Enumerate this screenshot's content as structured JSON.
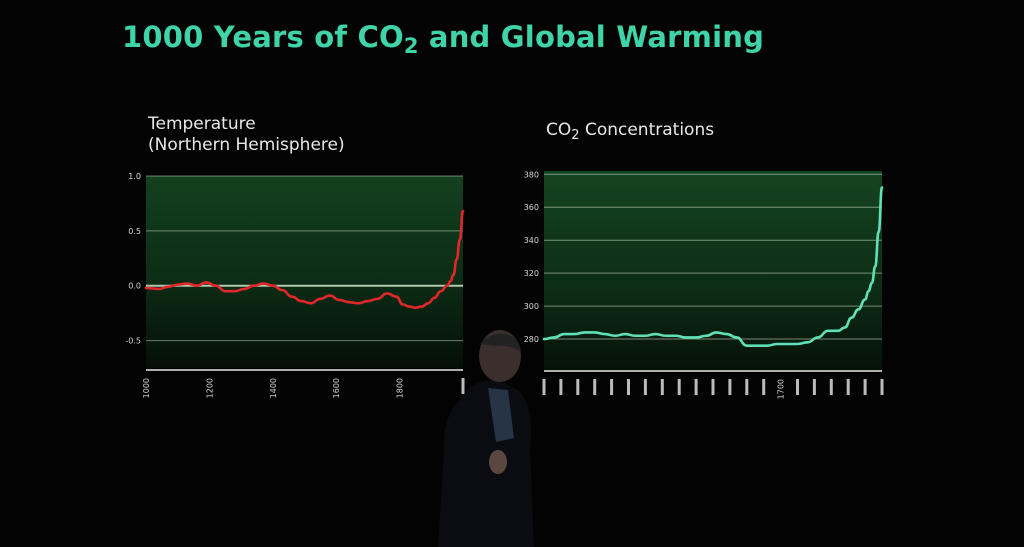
{
  "slide": {
    "title_main": "1000 Years of CO",
    "title_sub": "2",
    "title_rest": " and Global Warming"
  },
  "colors": {
    "title": "#3fd4a8",
    "temperature_line": "#e0272a",
    "co2_line": "#5fe0b6",
    "plot_background": "#0f3a1c",
    "gridline": "#cfe3c9"
  },
  "chart_data": [
    {
      "type": "line",
      "title_line1": "Temperature",
      "title_line2": "(Northern Hemisphere)",
      "xlim": [
        1000,
        2000
      ],
      "ylim": [
        -0.75,
        1.0
      ],
      "yticks": [
        1.0,
        0.5,
        0.0,
        -0.5
      ],
      "ytick_labels": [
        "1.0",
        "0.5",
        "0.0",
        "-0.5"
      ],
      "xticks": [
        1000,
        1200,
        1400,
        1600,
        1800,
        2000
      ],
      "xtick_labels": [
        "1000",
        "1200",
        "1400",
        "1600",
        "1800",
        ""
      ],
      "grid": true,
      "series": [
        {
          "x": [
            1000,
            1040,
            1070,
            1100,
            1130,
            1160,
            1190,
            1220,
            1250,
            1280,
            1310,
            1340,
            1370,
            1400,
            1430,
            1460,
            1490,
            1520,
            1550,
            1580,
            1610,
            1640,
            1670,
            1700,
            1730,
            1760,
            1790,
            1810,
            1830,
            1850,
            1870,
            1890,
            1910,
            1930,
            1950,
            1960,
            1970,
            1980,
            1990,
            2000
          ],
          "y": [
            -0.02,
            -0.03,
            -0.01,
            0.01,
            0.02,
            0.0,
            0.03,
            0.0,
            -0.05,
            -0.05,
            -0.03,
            0.0,
            0.02,
            0.0,
            -0.04,
            -0.1,
            -0.14,
            -0.16,
            -0.12,
            -0.09,
            -0.13,
            -0.15,
            -0.16,
            -0.14,
            -0.12,
            -0.07,
            -0.1,
            -0.17,
            -0.19,
            -0.2,
            -0.19,
            -0.16,
            -0.11,
            -0.05,
            0.0,
            0.04,
            0.1,
            0.24,
            0.42,
            0.68
          ]
        }
      ]
    },
    {
      "type": "line",
      "title_main": "CO",
      "title_sub": "2",
      "title_rest": " Concentrations",
      "xlim": [
        1000,
        2000
      ],
      "ylim": [
        260,
        382
      ],
      "yticks": [
        380,
        360,
        340,
        320,
        300,
        280
      ],
      "ytick_labels": [
        "380",
        "360",
        "340",
        "320",
        "300",
        "280"
      ],
      "xticks": [
        1000,
        1050,
        1100,
        1150,
        1200,
        1250,
        1300,
        1350,
        1400,
        1450,
        1500,
        1550,
        1600,
        1650,
        1700,
        1750,
        1800,
        1850,
        1900,
        1950,
        2000
      ],
      "xtick_labels": [
        "",
        "",
        "",
        "",
        "",
        "",
        "",
        "",
        "",
        "",
        "",
        "",
        "",
        "",
        "1700",
        "",
        "",
        "",
        "",
        "",
        ""
      ],
      "grid": true,
      "series": [
        {
          "x": [
            1000,
            1030,
            1060,
            1090,
            1120,
            1150,
            1180,
            1210,
            1240,
            1270,
            1300,
            1330,
            1360,
            1390,
            1420,
            1450,
            1480,
            1510,
            1540,
            1570,
            1600,
            1630,
            1660,
            1690,
            1720,
            1750,
            1780,
            1810,
            1840,
            1870,
            1890,
            1910,
            1930,
            1950,
            1960,
            1970,
            1980,
            1990,
            2000
          ],
          "y": [
            280,
            281,
            283,
            283,
            284,
            284,
            283,
            282,
            283,
            282,
            282,
            283,
            282,
            282,
            281,
            281,
            282,
            284,
            283,
            281,
            276,
            276,
            276,
            277,
            277,
            277,
            278,
            281,
            285,
            285,
            287,
            293,
            298,
            304,
            309,
            314,
            324,
            345,
            372
          ]
        }
      ]
    }
  ]
}
